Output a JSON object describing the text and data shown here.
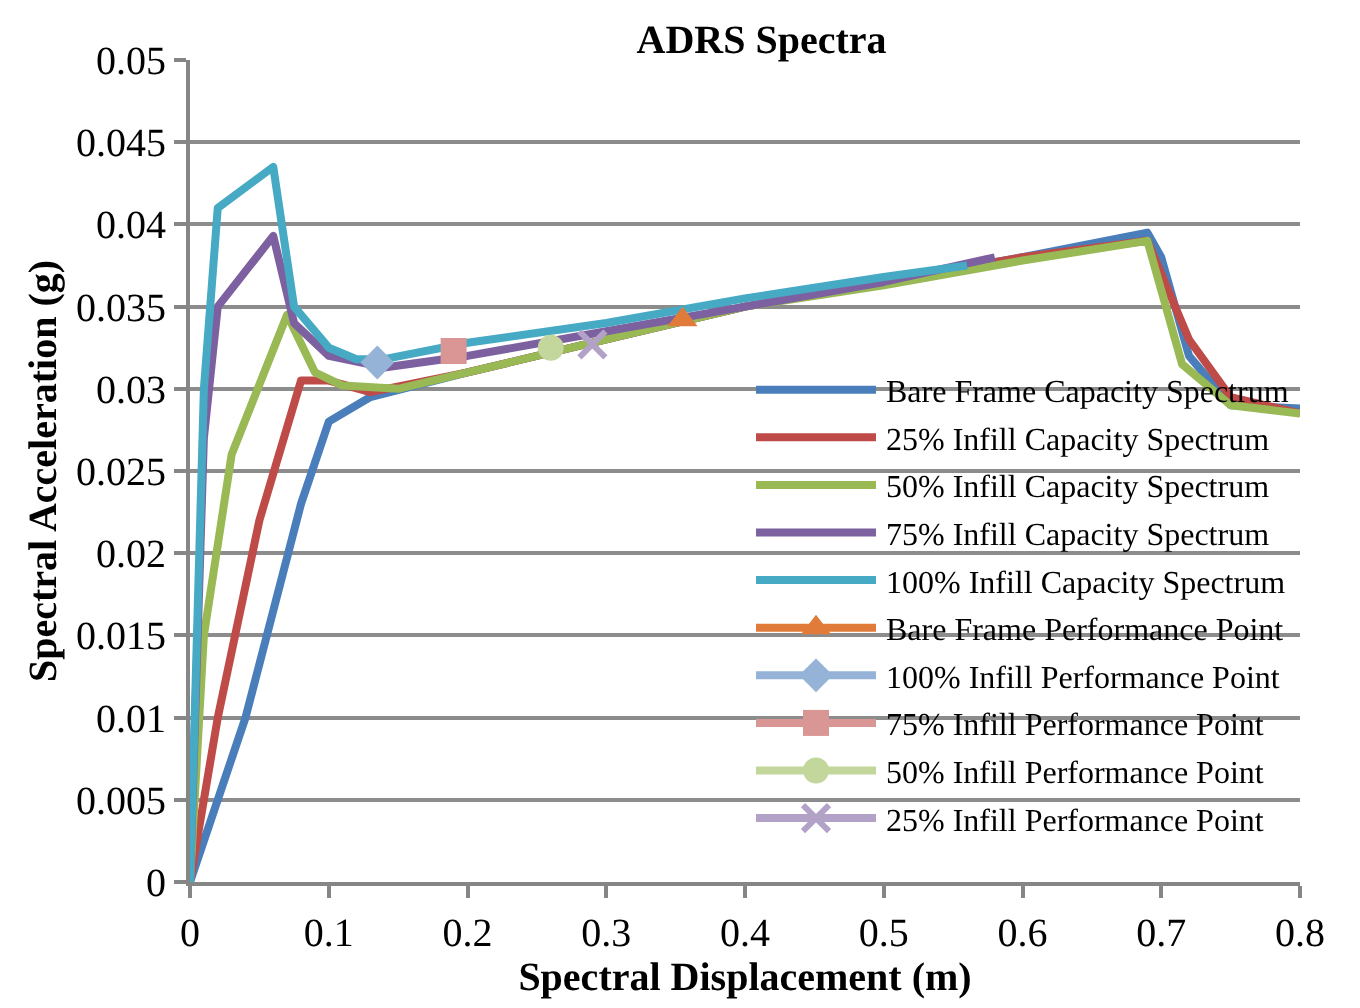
{
  "chart_data": {
    "type": "line",
    "title": "ADRS Spectra",
    "xlabel": "Spectral Displacement (m)",
    "ylabel": "Spectral Acceleration (g)",
    "xlim": [
      0,
      0.8
    ],
    "xticks": [
      0,
      0.1,
      0.2,
      0.3,
      0.4,
      0.5,
      0.6,
      0.7,
      0.8
    ],
    "ylim": [
      0,
      0.05
    ],
    "yticks": [
      0,
      0.005,
      0.01,
      0.015,
      0.02,
      0.025,
      0.03,
      0.035,
      0.04,
      0.045,
      0.05
    ],
    "grid": "y",
    "legend": "right",
    "line_style": "solid",
    "marker": "none",
    "series": [
      {
        "name": "Bare Frame Capacity Spectrum",
        "color": "#4a7ebb",
        "x": [
          0,
          0.04,
          0.08,
          0.1,
          0.13,
          0.2,
          0.3,
          0.4,
          0.5,
          0.6,
          0.69,
          0.7,
          0.72,
          0.75,
          0.8
        ],
        "values": [
          0,
          0.01,
          0.023,
          0.028,
          0.0295,
          0.031,
          0.033,
          0.035,
          0.0365,
          0.038,
          0.0395,
          0.038,
          0.032,
          0.029,
          0.0288
        ]
      },
      {
        "name": "25% Infill Capacity Spectrum",
        "color": "#be4b48",
        "x": [
          0,
          0.02,
          0.05,
          0.08,
          0.1,
          0.13,
          0.2,
          0.3,
          0.4,
          0.5,
          0.6,
          0.69,
          0.72,
          0.75,
          0.8
        ],
        "values": [
          0,
          0.01,
          0.022,
          0.0305,
          0.0305,
          0.0298,
          0.031,
          0.033,
          0.035,
          0.0365,
          0.038,
          0.039,
          0.033,
          0.0295,
          0.0285
        ]
      },
      {
        "name": "50% Infill Capacity Spectrum",
        "color": "#98b954",
        "x": [
          0,
          0.01,
          0.03,
          0.07,
          0.09,
          0.11,
          0.15,
          0.2,
          0.3,
          0.4,
          0.5,
          0.6,
          0.69,
          0.715,
          0.75,
          0.8
        ],
        "values": [
          0,
          0.015,
          0.026,
          0.0345,
          0.031,
          0.0302,
          0.03,
          0.031,
          0.033,
          0.035,
          0.0363,
          0.0378,
          0.039,
          0.0315,
          0.029,
          0.0285
        ]
      },
      {
        "name": "75% Infill Capacity Spectrum",
        "color": "#7d60a0",
        "x": [
          0,
          0.01,
          0.02,
          0.06,
          0.075,
          0.1,
          0.14,
          0.2,
          0.3,
          0.4,
          0.5,
          0.58
        ],
        "values": [
          0,
          0.027,
          0.035,
          0.0393,
          0.034,
          0.032,
          0.0313,
          0.032,
          0.0335,
          0.035,
          0.0365,
          0.038
        ]
      },
      {
        "name": "100% Infill Capacity Spectrum",
        "color": "#46aac5",
        "x": [
          0,
          0.01,
          0.02,
          0.06,
          0.075,
          0.1,
          0.12,
          0.14,
          0.2,
          0.3,
          0.4,
          0.5,
          0.56
        ],
        "values": [
          0,
          0.03,
          0.041,
          0.0435,
          0.035,
          0.0325,
          0.0318,
          0.0318,
          0.0328,
          0.034,
          0.0355,
          0.0368,
          0.0375
        ]
      },
      {
        "name": "Bare Frame Performance Point",
        "type": "scatter",
        "marker": "triangle",
        "color": "#e07b39",
        "x": [
          0.355
        ],
        "values": [
          0.0342
        ]
      },
      {
        "name": "100% Infill Performance Point",
        "type": "scatter",
        "marker": "diamond",
        "color": "#95b3d7",
        "x": [
          0.135
        ],
        "values": [
          0.0316
        ]
      },
      {
        "name": "75% Infill Performance Point",
        "type": "scatter",
        "marker": "square",
        "color": "#d99694",
        "x": [
          0.19
        ],
        "values": [
          0.0323
        ]
      },
      {
        "name": "50% Infill Performance Point",
        "type": "scatter",
        "marker": "circle",
        "color": "#c3d69b",
        "x": [
          0.26
        ],
        "values": [
          0.0325
        ]
      },
      {
        "name": "25% Infill Performance Point",
        "type": "scatter",
        "marker": "cross",
        "color": "#b3a2c7",
        "x": [
          0.29
        ],
        "values": [
          0.0327
        ]
      }
    ]
  }
}
